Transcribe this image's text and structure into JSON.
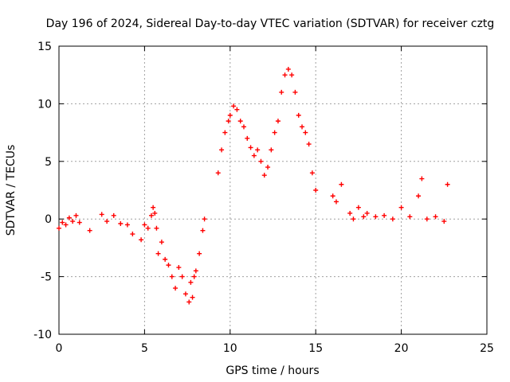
{
  "chart_data": {
    "type": "scatter",
    "title": "Day 196 of 2024, Sidereal Day-to-day VTEC variation (SDTVAR) for receiver cztg",
    "xlabel": "GPS time / hours",
    "ylabel": "SDTVAR / TECUs",
    "xlim": [
      0,
      25
    ],
    "ylim": [
      -10,
      15
    ],
    "xticks": [
      0,
      5,
      10,
      15,
      20,
      25
    ],
    "yticks": [
      -10,
      -5,
      0,
      5,
      10,
      15
    ],
    "grid": true,
    "marker": "+",
    "color": "#ff0000",
    "series": [
      {
        "name": "SDTVAR",
        "x": [
          0.0,
          0.2,
          0.4,
          0.6,
          0.8,
          1.0,
          1.2,
          1.8,
          2.5,
          2.8,
          3.2,
          3.6,
          4.0,
          4.3,
          4.8,
          5.0,
          5.2,
          5.4,
          5.5,
          5.6,
          5.7,
          5.8,
          6.0,
          6.2,
          6.4,
          6.6,
          6.8,
          7.0,
          7.2,
          7.4,
          7.6,
          7.7,
          7.8,
          7.9,
          8.0,
          8.2,
          8.4,
          8.5,
          9.3,
          9.5,
          9.7,
          9.9,
          10.0,
          10.2,
          10.4,
          10.6,
          10.8,
          11.0,
          11.2,
          11.4,
          11.6,
          11.8,
          12.0,
          12.2,
          12.4,
          12.6,
          12.8,
          13.0,
          13.2,
          13.4,
          13.6,
          13.8,
          14.0,
          14.2,
          14.4,
          14.6,
          14.8,
          15.0,
          16.0,
          16.2,
          16.5,
          17.0,
          17.2,
          17.5,
          17.8,
          18.0,
          18.5,
          19.0,
          19.5,
          20.0,
          20.5,
          21.0,
          21.2,
          21.5,
          22.0,
          22.5,
          22.7
        ],
        "y": [
          -0.8,
          -0.3,
          -0.5,
          0.1,
          -0.2,
          0.3,
          -0.3,
          -1.0,
          0.4,
          -0.2,
          0.3,
          -0.4,
          -0.5,
          -1.3,
          -1.8,
          -0.5,
          -0.8,
          0.3,
          1.0,
          0.5,
          -0.8,
          -3.0,
          -2.0,
          -3.5,
          -4.0,
          -5.0,
          -6.0,
          -4.2,
          -5.0,
          -6.5,
          -7.2,
          -5.5,
          -6.8,
          -5.0,
          -4.5,
          -3.0,
          -1.0,
          0.0,
          4.0,
          6.0,
          7.5,
          8.5,
          9.0,
          9.8,
          9.5,
          8.5,
          8.0,
          7.0,
          6.2,
          5.5,
          6.0,
          5.0,
          3.8,
          4.5,
          6.0,
          7.5,
          8.5,
          11.0,
          12.5,
          13.0,
          12.5,
          11.0,
          9.0,
          8.0,
          7.5,
          6.5,
          4.0,
          2.5,
          2.0,
          1.5,
          3.0,
          0.5,
          0.0,
          1.0,
          0.2,
          0.5,
          0.2,
          0.3,
          0.0,
          1.0,
          0.2,
          2.0,
          3.5,
          0.0,
          0.2,
          -0.2,
          3.0
        ]
      }
    ]
  }
}
